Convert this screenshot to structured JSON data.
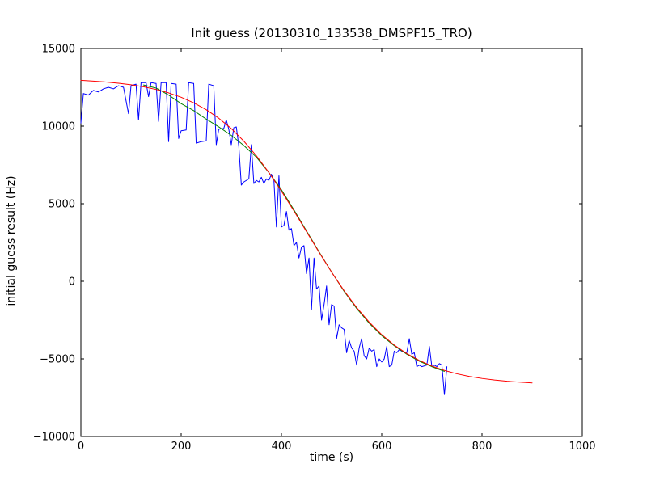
{
  "chart_data": {
    "type": "line",
    "title": "Init guess (20130310_133538_DMSPF15_TRO)",
    "xlabel": "time (s)",
    "ylabel": "initial guess result (Hz)",
    "xlim": [
      0,
      1000
    ],
    "ylim": [
      -10000,
      15000
    ],
    "xticks": [
      0,
      200,
      400,
      600,
      800,
      1000
    ],
    "yticks": [
      -10000,
      -5000,
      0,
      5000,
      10000,
      15000
    ],
    "grid": false,
    "legend": "none",
    "background": "#ffffff",
    "frame_color": "#000000",
    "series": [
      {
        "name": "initial-guess-data",
        "color": "#0000ff",
        "x": [
          0,
          5,
          15,
          25,
          35,
          45,
          55,
          65,
          75,
          85,
          95,
          100,
          110,
          115,
          120,
          130,
          135,
          140,
          150,
          155,
          160,
          170,
          175,
          180,
          190,
          195,
          200,
          210,
          215,
          225,
          230,
          240,
          250,
          255,
          265,
          270,
          275,
          285,
          290,
          295,
          300,
          305,
          310,
          315,
          320,
          325,
          335,
          340,
          345,
          350,
          355,
          360,
          365,
          370,
          375,
          380,
          385,
          390,
          395,
          400,
          405,
          410,
          415,
          420,
          425,
          430,
          435,
          440,
          445,
          450,
          455,
          460,
          465,
          470,
          475,
          480,
          485,
          490,
          495,
          500,
          505,
          510,
          515,
          520,
          525,
          530,
          535,
          540,
          545,
          550,
          555,
          560,
          565,
          570,
          575,
          580,
          585,
          590,
          595,
          600,
          605,
          610,
          615,
          620,
          625,
          630,
          635,
          640,
          650,
          655,
          660,
          665,
          670,
          675,
          680,
          690,
          695,
          700,
          705,
          710,
          715,
          720,
          725,
          730
        ],
        "y": [
          10200,
          12100,
          12000,
          12300,
          12200,
          12400,
          12500,
          12400,
          12600,
          12500,
          10800,
          12600,
          12700,
          10400,
          12800,
          12800,
          11900,
          12800,
          12750,
          10300,
          12800,
          12800,
          9000,
          12750,
          12700,
          9200,
          9700,
          9750,
          12800,
          12750,
          8900,
          9000,
          9050,
          12700,
          12600,
          8800,
          9800,
          9850,
          10400,
          9800,
          8800,
          9900,
          9950,
          8700,
          6200,
          6400,
          6600,
          8800,
          6300,
          6500,
          6400,
          6700,
          6300,
          6600,
          6500,
          6900,
          6500,
          3500,
          6800,
          3500,
          3600,
          4500,
          3300,
          3400,
          2300,
          2500,
          1500,
          2200,
          2300,
          500,
          1500,
          -1800,
          1500,
          -500,
          -300,
          -2500,
          -1500,
          -300,
          -2800,
          -1500,
          -1600,
          -3700,
          -2800,
          -3000,
          -3100,
          -4600,
          -3800,
          -4300,
          -4500,
          -5400,
          -4300,
          -3700,
          -4800,
          -5000,
          -4300,
          -4500,
          -4400,
          -5500,
          -5000,
          -5200,
          -5000,
          -4200,
          -5500,
          -5400,
          -4500,
          -4600,
          -4400,
          -4500,
          -4600,
          -3700,
          -4700,
          -4600,
          -5500,
          -5400,
          -5500,
          -5400,
          -4200,
          -5500,
          -5400,
          -5500,
          -5300,
          -5400,
          -7300,
          -5500
        ]
      },
      {
        "name": "smoothed-guess",
        "color": "#008000",
        "x": [
          125,
          150,
          175,
          200,
          225,
          250,
          275,
          300,
          325,
          350,
          375,
          400,
          425,
          450,
          475,
          500,
          525,
          550,
          575,
          600,
          625,
          650,
          675,
          700,
          725
        ],
        "y": [
          12650,
          12450,
          12000,
          11450,
          11000,
          10450,
          9950,
          9400,
          8750,
          8000,
          7000,
          5900,
          4600,
          3250,
          1900,
          600,
          -650,
          -1750,
          -2700,
          -3500,
          -4150,
          -4700,
          -5150,
          -5500,
          -5800
        ]
      },
      {
        "name": "fitted-model",
        "color": "#ff0000",
        "x": [
          0,
          25,
          50,
          75,
          100,
          125,
          150,
          175,
          200,
          225,
          250,
          275,
          300,
          325,
          350,
          375,
          400,
          425,
          450,
          475,
          500,
          525,
          550,
          575,
          600,
          625,
          650,
          675,
          700,
          725,
          750,
          775,
          800,
          825,
          850,
          875,
          900
        ],
        "y": [
          12950,
          12900,
          12840,
          12760,
          12660,
          12530,
          12360,
          12140,
          11860,
          11500,
          11060,
          10510,
          9840,
          9030,
          8090,
          7010,
          5810,
          4530,
          3200,
          1870,
          590,
          -610,
          -1690,
          -2630,
          -3440,
          -4110,
          -4660,
          -5100,
          -5460,
          -5740,
          -5960,
          -6130,
          -6260,
          -6360,
          -6440,
          -6500,
          -6550
        ]
      }
    ]
  }
}
